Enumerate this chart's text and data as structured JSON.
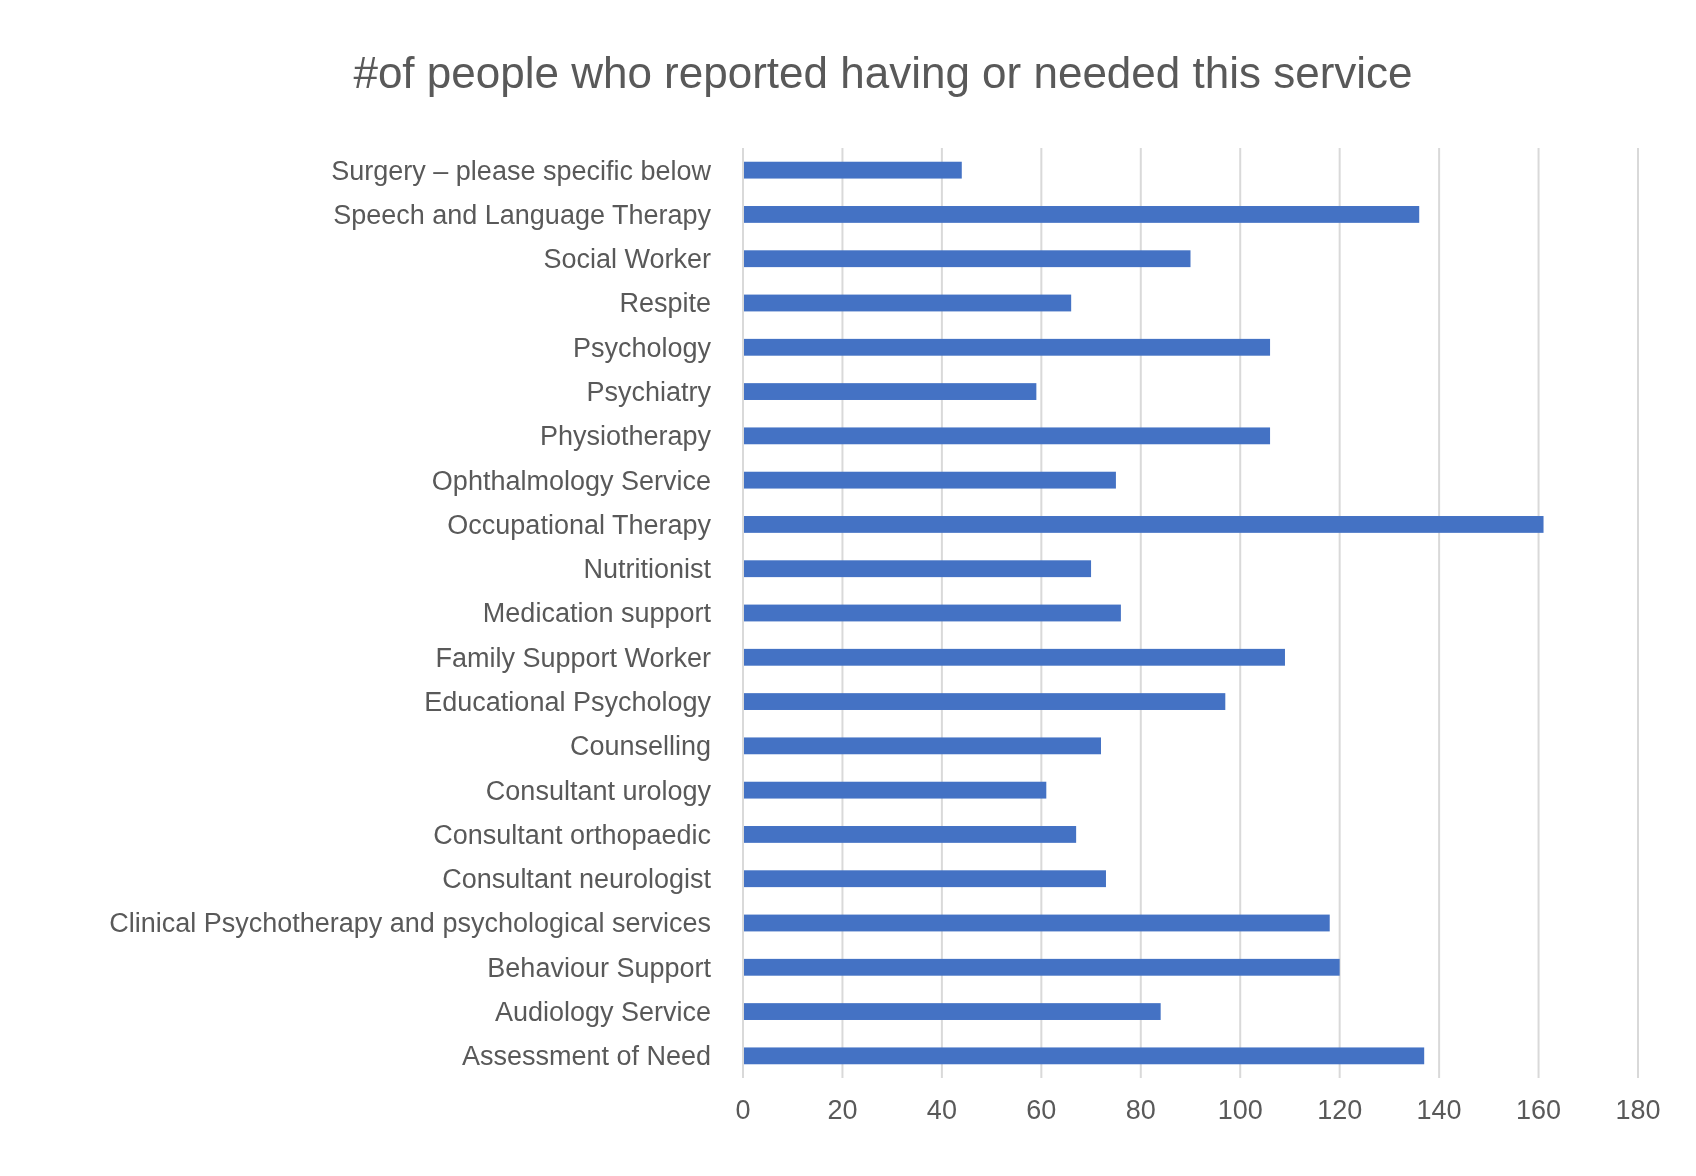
{
  "chart_data": {
    "type": "bar",
    "orientation": "horizontal",
    "title": "#of people who reported having or needed this service",
    "categories": [
      "Surgery – please specific below",
      "Speech and Language Therapy",
      "Social Worker",
      "Respite",
      "Psychology",
      "Psychiatry",
      "Physiotherapy",
      "Ophthalmology Service",
      "Occupational Therapy",
      "Nutritionist",
      "Medication support",
      "Family Support Worker",
      "Educational Psychology",
      "Counselling",
      "Consultant urology",
      "Consultant orthopaedic",
      "Consultant neurologist",
      "Clinical Psychotherapy and psychological services",
      "Behaviour Support",
      "Audiology Service",
      "Assessment of Need"
    ],
    "values": [
      44,
      136,
      90,
      66,
      106,
      59,
      106,
      75,
      161,
      70,
      76,
      109,
      97,
      72,
      61,
      67,
      73,
      118,
      120,
      84,
      137
    ],
    "color": "#4472c4",
    "xlim": [
      0,
      180
    ],
    "xticks": [
      0,
      20,
      40,
      60,
      80,
      100,
      120,
      140,
      160,
      180
    ],
    "grid": "x"
  }
}
